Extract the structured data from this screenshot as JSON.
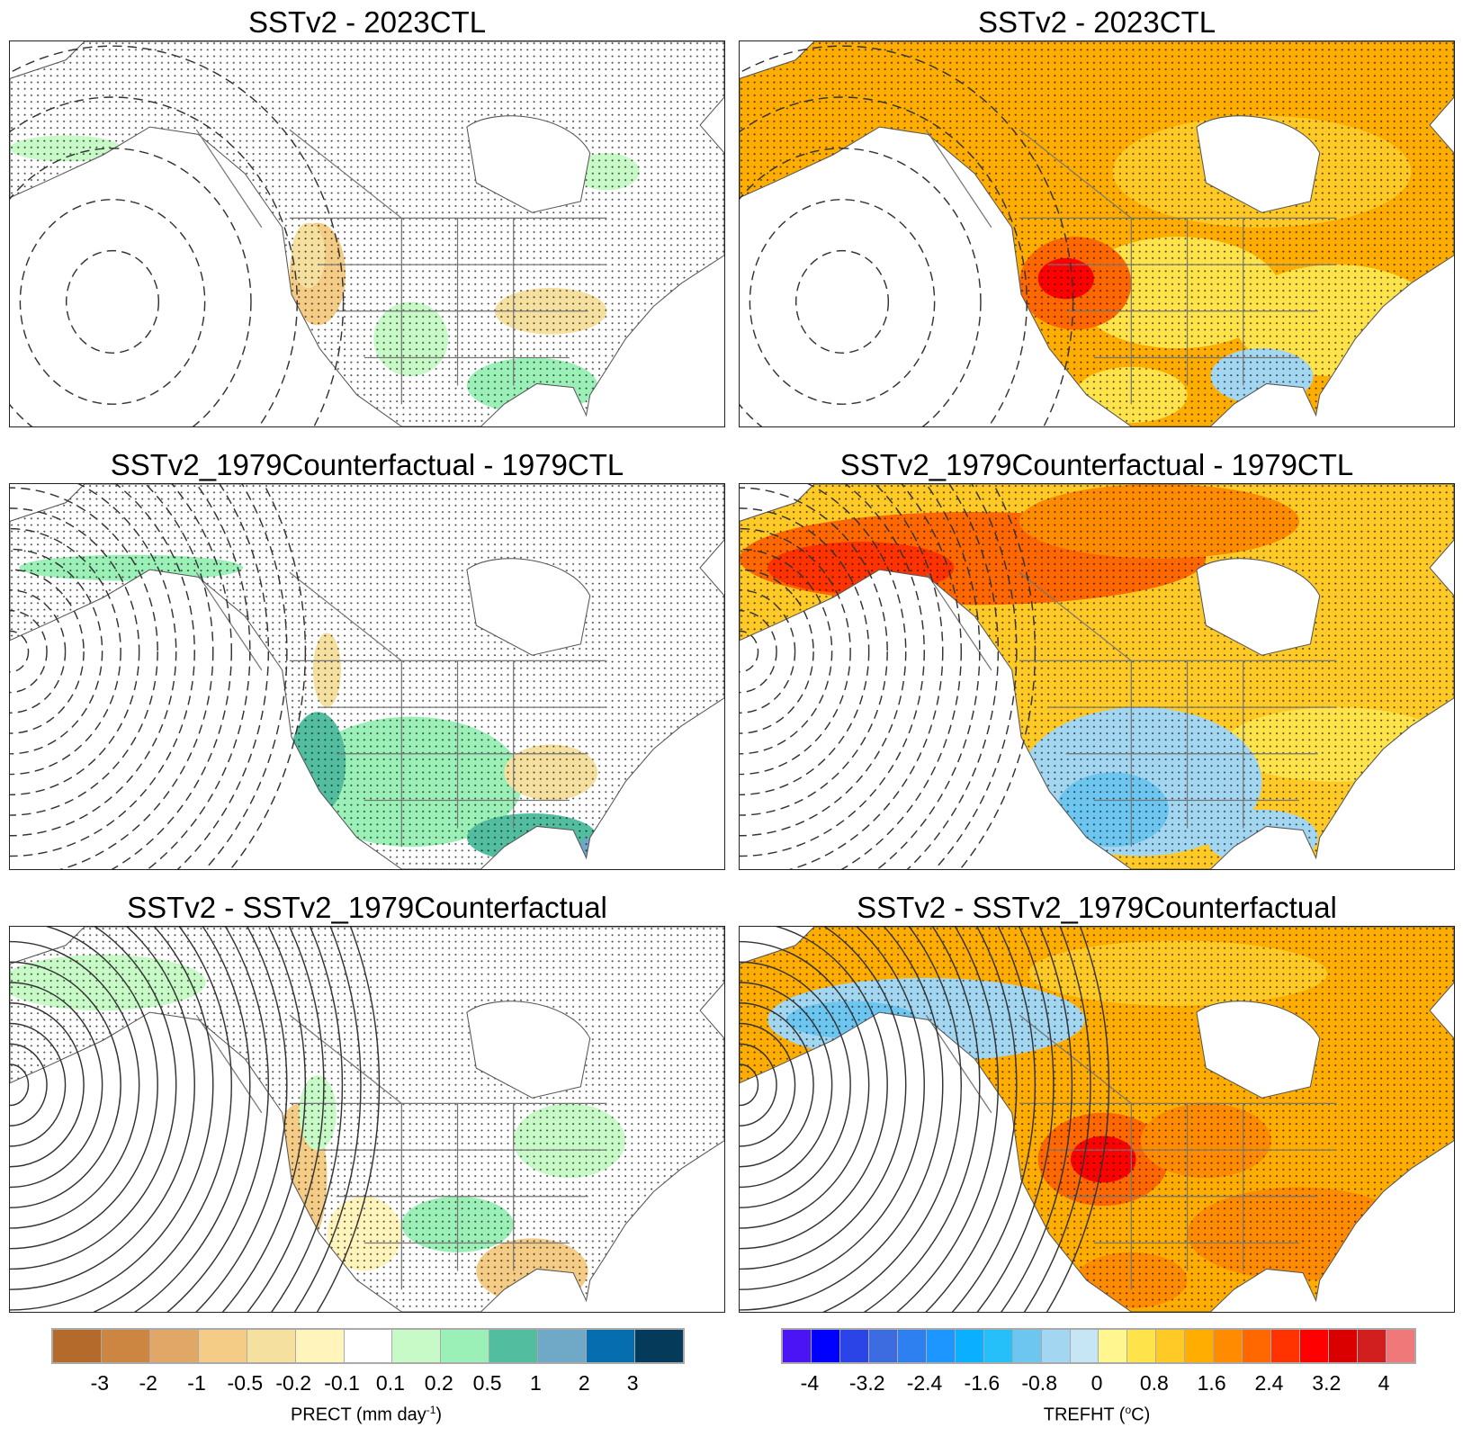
{
  "panels": [
    {
      "title": "SSTv2 - 2023CTL",
      "variable": "PRECT"
    },
    {
      "title": "SSTv2 - 2023CTL",
      "variable": "TREFHT"
    },
    {
      "title": "SSTv2_1979Counterfactual - 1979CTL",
      "variable": "PRECT"
    },
    {
      "title": "SSTv2_1979Counterfactual - 1979CTL",
      "variable": "TREFHT"
    },
    {
      "title": "SSTv2 - SSTv2_1979Counterfactual",
      "variable": "PRECT"
    },
    {
      "title": "SSTv2 - SSTv2_1979Counterfactual",
      "variable": "TREFHT"
    }
  ],
  "colorbars": {
    "precip": {
      "title_main": "PRECT (mm day",
      "title_sup": "-1",
      "title_end": ")",
      "labels": [
        "-3",
        "-2",
        "-1",
        "-0.5",
        "-0.2",
        "-0.1",
        "0.1",
        "0.2",
        "0.5",
        "1",
        "2",
        "3"
      ],
      "colors": [
        "#B36A2A",
        "#CD8642",
        "#E0A766",
        "#F4CC86",
        "#F5E0A0",
        "#FFF4BC",
        "#FFFFFF",
        "#C8FAC8",
        "#9AF0B6",
        "#52BE9F",
        "#70A9C7",
        "#066EAF",
        "#063A5B"
      ]
    },
    "temp": {
      "title_main": "TREFHT (",
      "title_sup": "o",
      "title_end": "C)",
      "labels": [
        "-4",
        "-3.2",
        "-2.4",
        "-1.6",
        "-0.8",
        "0",
        "0.8",
        "1.6",
        "2.4",
        "3.2",
        "4"
      ],
      "colors": [
        "#4B14F5",
        "#0000FF",
        "#2A44E8",
        "#3D6CE0",
        "#2E7FEF",
        "#1E96FF",
        "#0BAFFF",
        "#25C0FA",
        "#6CC6F0",
        "#A3D6F0",
        "#C6E6F5",
        "#FFF68F",
        "#FFE34A",
        "#FFC926",
        "#FFAD00",
        "#FF8C00",
        "#FF6800",
        "#FF3300",
        "#FF0000",
        "#DB0000",
        "#D11F1F",
        "#F07878"
      ]
    }
  }
}
